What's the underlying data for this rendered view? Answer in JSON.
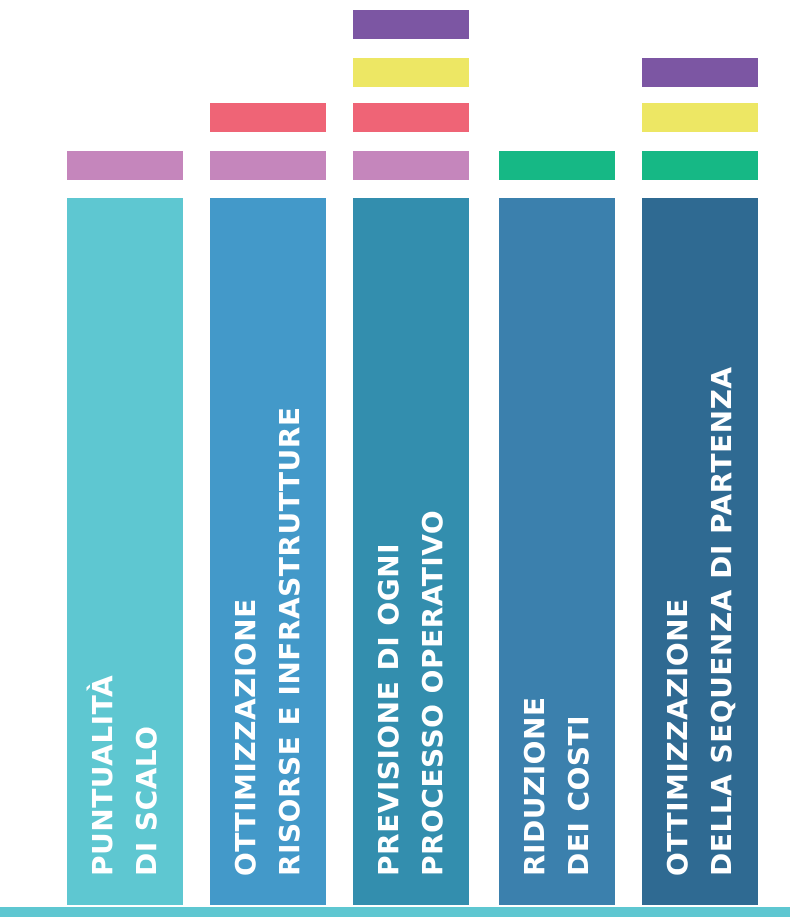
{
  "columns": [
    {
      "line1": "PUNTUALITÀ",
      "line2": "DI SCALO"
    },
    {
      "line1": "OTTIMIZZAZIONE",
      "line2": "RISORSE E INFRASTRUTTURE"
    },
    {
      "line1": "PREVISIONE DI OGNI",
      "line2": "PROCESSO OPERATIVO"
    },
    {
      "line1": "RIDUZIONE",
      "line2": "DEI COSTI"
    },
    {
      "line1": "OTTIMIZZAZIONE",
      "line2": "DELLA SEQUENZA DI PARTENZA"
    }
  ],
  "colors": {
    "column_fills": [
      "#5ec7d1",
      "#4399c9",
      "#338eae",
      "#3b80ad",
      "#2f6a92"
    ],
    "pink": "#c586bc",
    "red": "#ef6476",
    "yellow": "#ede764",
    "purple": "#7c56a3",
    "green": "#16b885",
    "baseline": "#5ec7d1"
  },
  "tag_stacks": [
    [
      "pink"
    ],
    [
      "pink",
      "red"
    ],
    [
      "pink",
      "red",
      "yellow",
      "purple"
    ],
    [
      "green"
    ],
    [
      "green",
      "yellow",
      "purple"
    ]
  ]
}
